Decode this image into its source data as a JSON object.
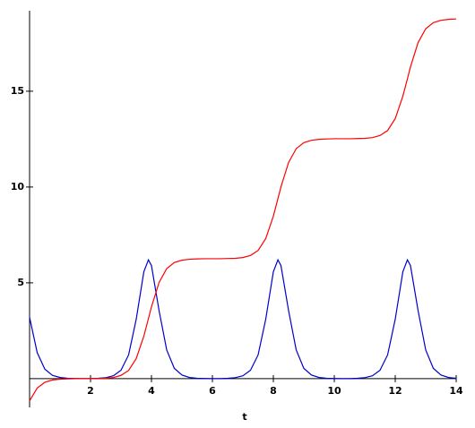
{
  "chart_data": {
    "type": "line",
    "x_label": "t",
    "x": [
      0,
      0.25,
      0.5,
      0.75,
      1,
      1.25,
      1.5,
      1.75,
      2,
      2.25,
      2.5,
      2.75,
      3,
      3.25,
      3.5,
      3.75,
      3.9,
      4,
      4.25,
      4.5,
      4.75,
      5,
      5.25,
      5.5,
      5.75,
      6,
      6.25,
      6.5,
      6.75,
      7,
      7.25,
      7.5,
      7.75,
      8,
      8.15,
      8.25,
      8.5,
      8.75,
      9,
      9.25,
      9.5,
      9.75,
      10,
      10.25,
      10.5,
      10.75,
      11,
      11.25,
      11.5,
      11.75,
      12,
      12.25,
      12.4,
      12.5,
      12.75,
      13,
      13.25,
      13.5,
      13.75,
      14
    ],
    "series": [
      {
        "color": "#0000cc",
        "values": [
          3.2,
          1.36,
          0.5,
          0.17,
          0.06,
          0.02,
          0.01,
          0,
          0,
          0.02,
          0.05,
          0.15,
          0.44,
          1.24,
          3.1,
          5.58,
          6.2,
          5.9,
          3.55,
          1.5,
          0.54,
          0.19,
          0.06,
          0.02,
          0.01,
          0,
          0,
          0.02,
          0.05,
          0.15,
          0.44,
          1.24,
          3.1,
          5.58,
          6.2,
          5.9,
          3.55,
          1.5,
          0.54,
          0.19,
          0.06,
          0.02,
          0.01,
          0,
          0,
          0.02,
          0.05,
          0.15,
          0.44,
          1.24,
          3.1,
          5.58,
          6.2,
          5.9,
          3.55,
          1.5,
          0.54,
          0.19,
          0.06,
          0.02
        ]
      },
      {
        "color": "#ff0000",
        "values": [
          -1.16,
          -0.49,
          -0.19,
          -0.07,
          -0.03,
          -0.01,
          0,
          0,
          0,
          0.01,
          0.02,
          0.06,
          0.17,
          0.43,
          1.05,
          2.22,
          3.13,
          3.75,
          5.02,
          5.74,
          6.06,
          6.18,
          6.23,
          6.25,
          6.26,
          6.26,
          6.26,
          6.27,
          6.28,
          6.32,
          6.43,
          6.69,
          7.31,
          8.48,
          9.39,
          10.01,
          11.28,
          12.0,
          12.32,
          12.44,
          12.49,
          12.51,
          12.52,
          12.52,
          12.52,
          12.53,
          12.54,
          12.58,
          12.69,
          12.95,
          13.57,
          14.74,
          15.65,
          16.27,
          17.54,
          18.26,
          18.58,
          18.7,
          18.75,
          18.77
        ]
      }
    ],
    "xlim": [
      0,
      14
    ],
    "xticks": [
      2,
      4,
      6,
      8,
      10,
      12,
      14
    ],
    "ylim": [
      -1.5,
      19.2
    ],
    "yticks": [
      5,
      10,
      15
    ]
  }
}
